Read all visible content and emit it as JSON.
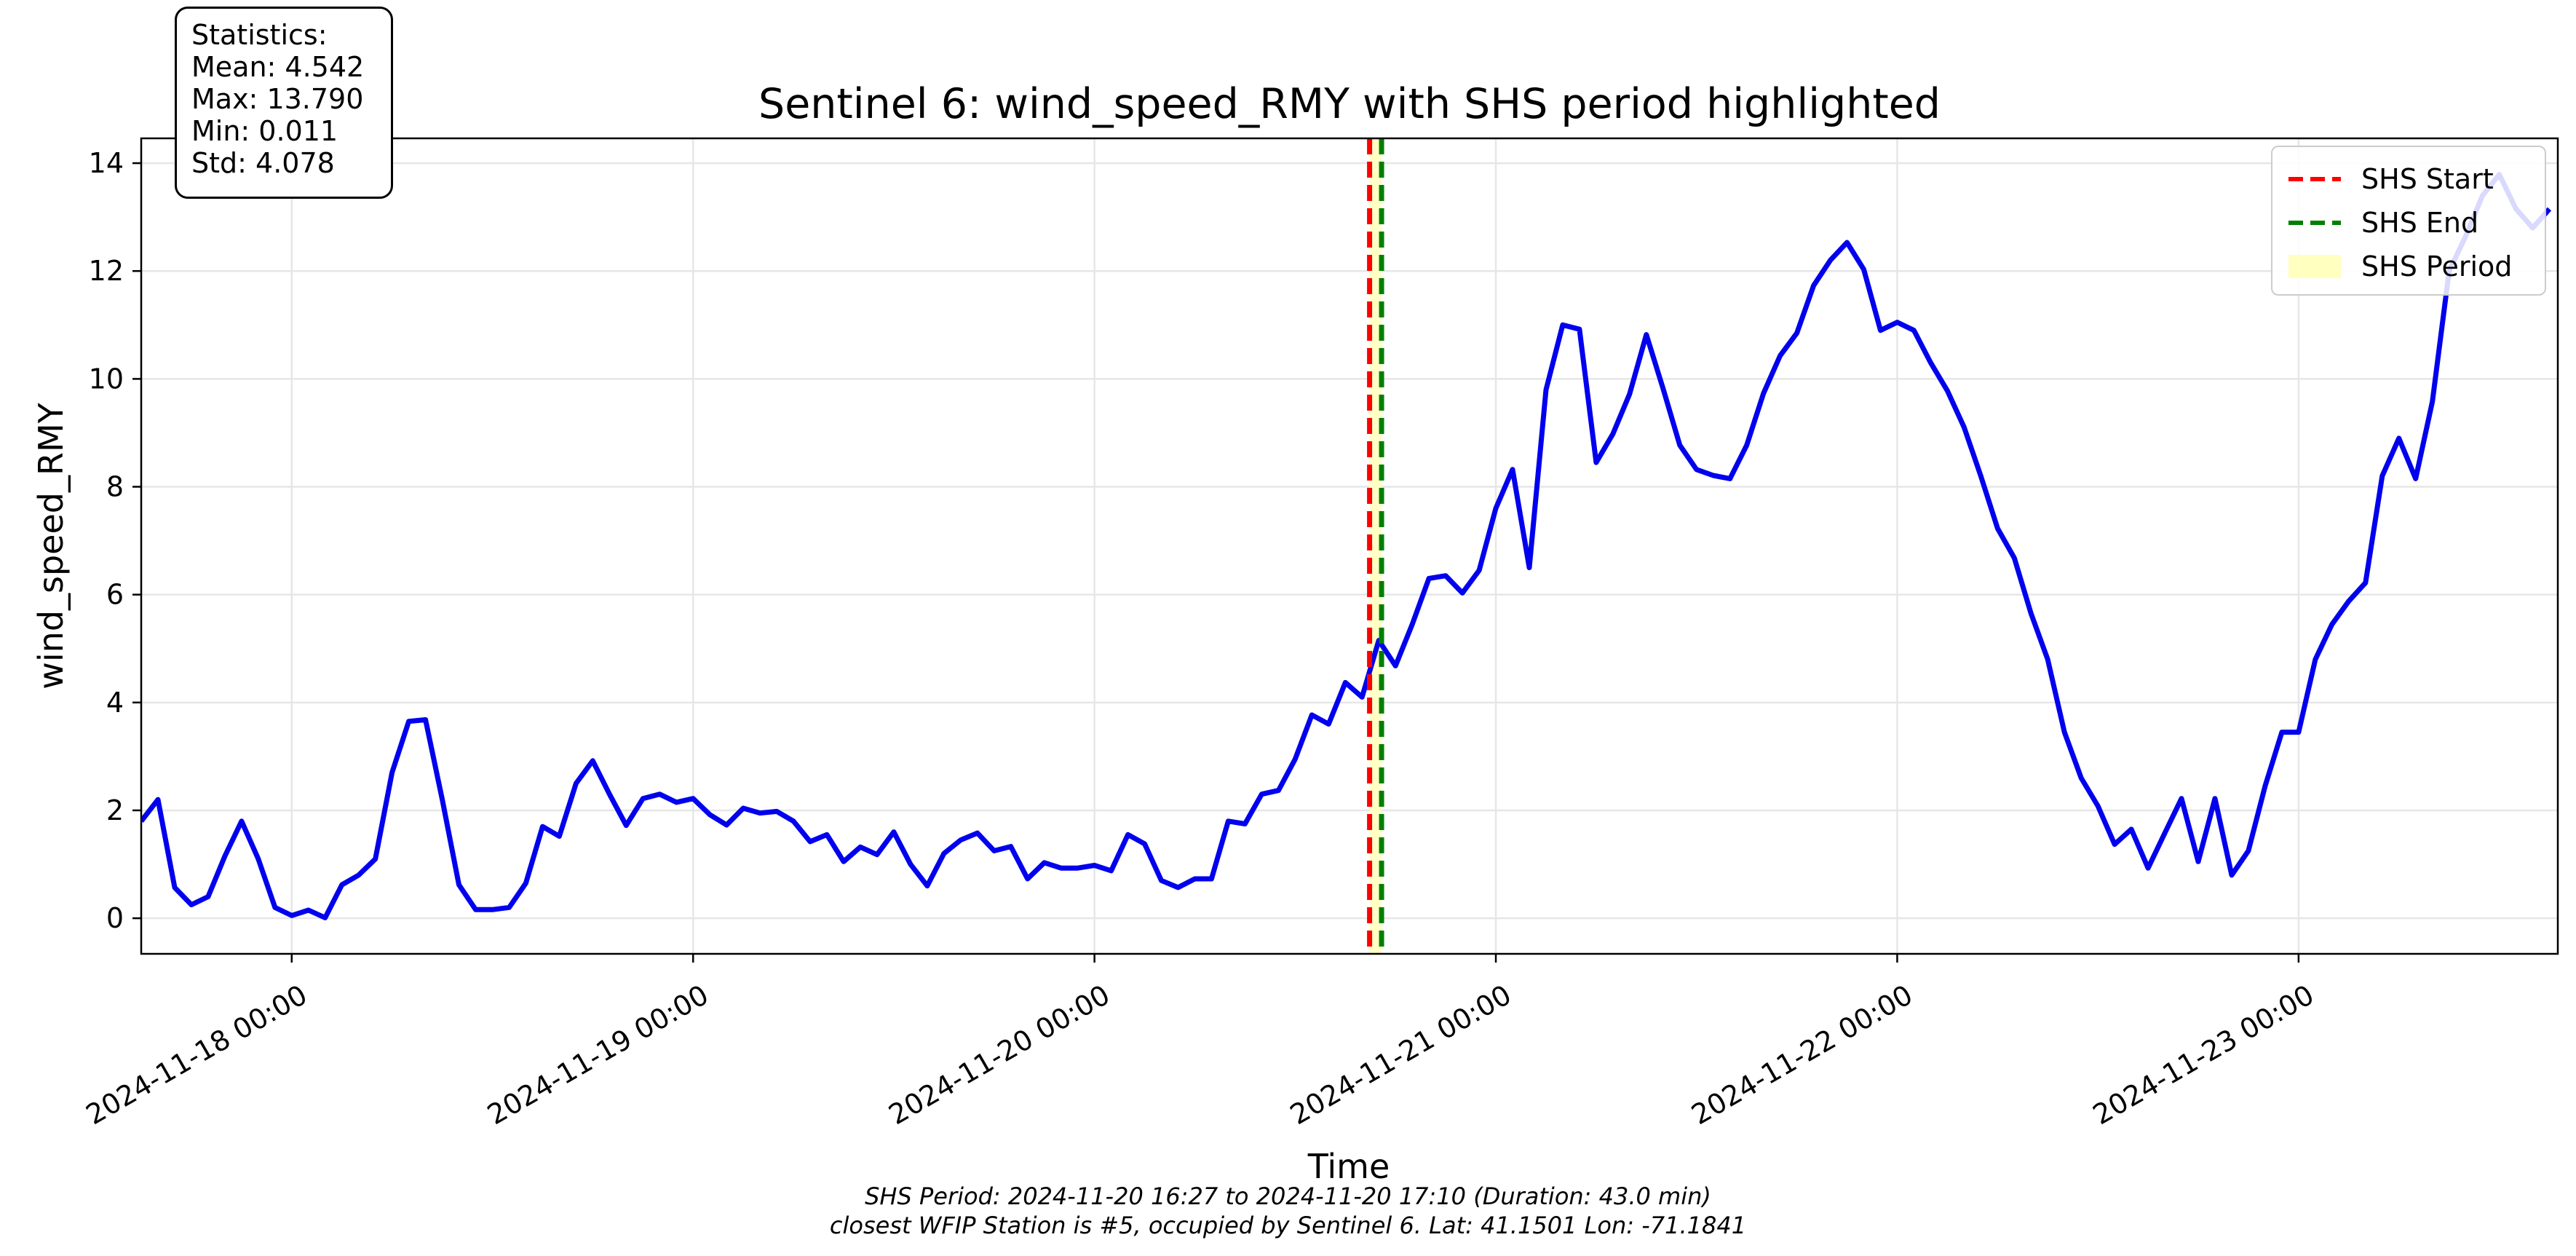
{
  "chart_data": {
    "type": "line",
    "title": "Sentinel 6: wind_speed_RMY with SHS period highlighted",
    "xlabel": "Time",
    "ylabel": "wind_speed_RMY",
    "x_start": "2024-11-17 15:00",
    "x_end": "2024-11-23 15:30",
    "xlim": [
      "2024-11-17 15:00",
      "2024-11-23 15:30"
    ],
    "ylim": [
      -0.66,
      14.46
    ],
    "yticks": [
      0,
      2,
      4,
      6,
      8,
      10,
      12,
      14
    ],
    "xticks": [
      "2024-11-18 00:00",
      "2024-11-19 00:00",
      "2024-11-20 00:00",
      "2024-11-21 00:00",
      "2024-11-22 00:00",
      "2024-11-23 00:00"
    ],
    "grid": true,
    "series": [
      {
        "name": "",
        "color": "#0000ee",
        "interval_minutes": 60,
        "values": [
          1.8,
          2.2,
          0.57,
          0.25,
          0.4,
          1.15,
          1.8,
          1.1,
          0.2,
          0.05,
          0.15,
          0.01,
          0.62,
          0.8,
          1.1,
          2.7,
          3.65,
          3.68,
          2.2,
          0.62,
          0.16,
          0.16,
          0.2,
          0.65,
          1.7,
          1.52,
          2.5,
          2.92,
          2.3,
          1.72,
          2.22,
          2.3,
          2.15,
          2.22,
          1.92,
          1.73,
          2.04,
          1.95,
          1.98,
          1.8,
          1.42,
          1.55,
          1.05,
          1.32,
          1.18,
          1.6,
          1.0,
          0.6,
          1.2,
          1.45,
          1.58,
          1.25,
          1.33,
          0.73,
          1.03,
          0.93,
          0.93,
          0.98,
          0.88,
          1.55,
          1.38,
          0.7,
          0.57,
          0.73,
          0.73,
          1.8,
          1.75,
          2.3,
          2.37,
          2.95,
          3.77,
          3.6,
          4.37,
          4.1,
          5.15,
          4.68,
          5.45,
          6.3,
          6.35,
          6.03,
          6.45,
          7.6,
          8.32,
          6.5,
          9.8,
          11.0,
          10.92,
          8.45,
          8.98,
          9.72,
          10.82,
          9.82,
          8.77,
          8.32,
          8.21,
          8.15,
          8.77,
          9.73,
          10.43,
          10.85,
          11.73,
          12.2,
          12.53,
          12.03,
          10.9,
          11.05,
          10.9,
          10.3,
          9.78,
          9.1,
          8.2,
          7.23,
          6.68,
          5.65,
          4.8,
          3.45,
          2.6,
          2.08,
          1.37,
          1.65,
          0.93,
          1.58,
          2.22,
          1.05,
          2.22,
          0.8,
          1.25,
          2.45,
          3.45,
          3.45,
          4.8,
          5.45,
          5.88,
          6.22,
          8.2,
          8.9,
          8.15,
          9.58,
          12.0,
          12.65,
          13.4,
          13.79,
          13.15,
          12.8,
          13.15
        ]
      }
    ],
    "shs_start": "2024-11-20 16:27",
    "shs_end": "2024-11-20 17:10",
    "legend": {
      "placement": "top-right",
      "entries": [
        {
          "label": "SHS Start",
          "color": "#ff0000",
          "style": "dashed-line"
        },
        {
          "label": "SHS End",
          "color": "#008000",
          "style": "dashed-line"
        },
        {
          "label": "SHS Period",
          "color": "#ffffc0",
          "style": "patch"
        }
      ]
    },
    "statistics": {
      "heading": "Statistics:",
      "lines": [
        "Mean: 4.542",
        "Max: 13.790",
        "Min: 0.011",
        "Std: 4.078"
      ]
    },
    "footer": [
      "SHS Period: 2024-11-20 16:27 to 2024-11-20 17:10 (Duration: 43.0 min)",
      "closest WFIP Station is #5, occupied by Sentinel 6. Lat: 41.1501 Lon: -71.1841"
    ]
  }
}
